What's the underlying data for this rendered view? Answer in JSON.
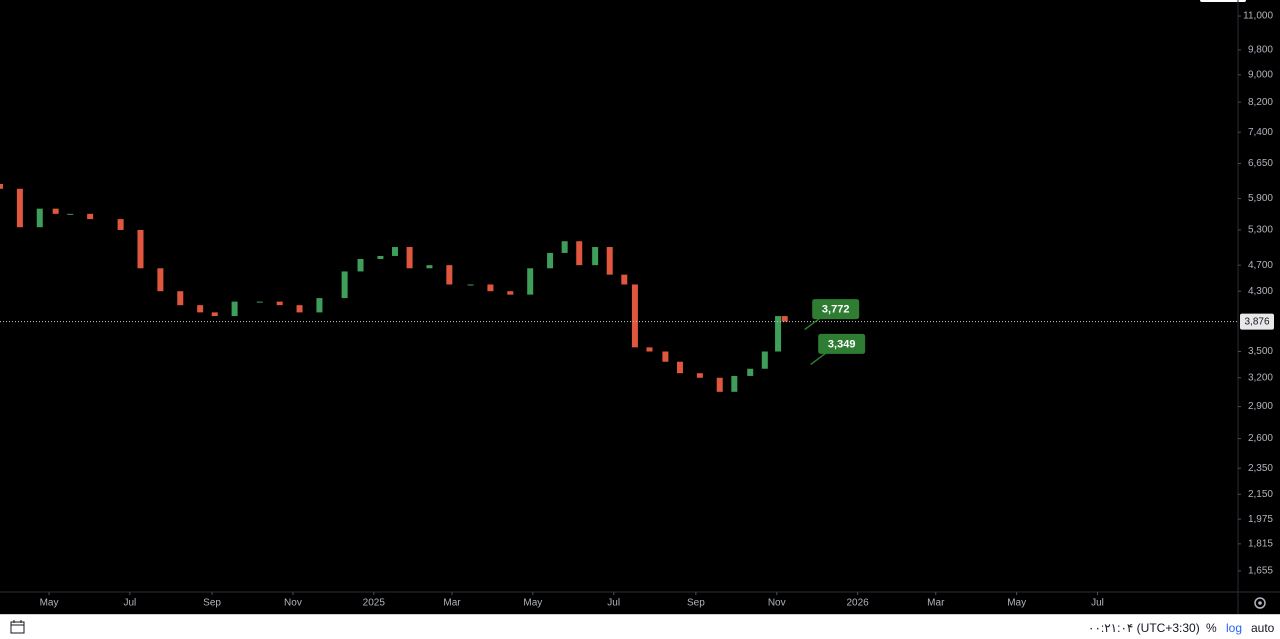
{
  "chart_data": {
    "type": "candlestick",
    "log_scale": true,
    "x": [
      -37,
      -22,
      -7,
      5,
      16,
      31,
      54,
      69,
      84,
      99,
      114,
      125,
      140,
      159,
      174,
      189,
      204,
      223,
      235,
      250,
      261,
      272,
      287,
      302,
      318,
      333,
      348,
      363,
      378,
      389,
      400,
      412,
      423,
      434,
      442,
      453,
      465,
      476,
      491,
      506,
      517,
      529,
      540,
      550,
      555
    ],
    "open": [
      6200,
      6100,
      5350,
      5700,
      5600,
      5600,
      5500,
      5300,
      4650,
      4300,
      4100,
      4000,
      3950,
      4150,
      4150,
      4100,
      4000,
      4200,
      4600,
      4800,
      4850,
      5000,
      4650,
      4700,
      4400,
      4400,
      4300,
      4250,
      4650,
      4900,
      5100,
      4700,
      5000,
      4550,
      4400,
      3550,
      3500,
      3380,
      3250,
      3200,
      3050,
      3220,
      3300,
      3500,
      3950
    ],
    "close": [
      6100,
      5350,
      5700,
      5600,
      5600,
      5500,
      5300,
      4650,
      4300,
      4100,
      4000,
      3950,
      4150,
      4150,
      4100,
      4000,
      4200,
      4600,
      4800,
      4850,
      5000,
      4650,
      4700,
      4400,
      4400,
      4300,
      4250,
      4650,
      4900,
      5100,
      4700,
      5000,
      4550,
      4400,
      3550,
      3500,
      3380,
      3250,
      3200,
      3050,
      3220,
      3300,
      3500,
      3950,
      3876
    ],
    "up_color": "#3f9e5a",
    "down_color": "#e0573f",
    "xlim": [
      -37,
      897
    ],
    "xticks": [
      {
        "value": 0,
        "label": "May"
      },
      {
        "value": 61,
        "label": "Jul"
      },
      {
        "value": 123,
        "label": "Sep"
      },
      {
        "value": 184,
        "label": "Nov"
      },
      {
        "value": 245,
        "label": "2025"
      },
      {
        "value": 304,
        "label": "Mar"
      },
      {
        "value": 365,
        "label": "May"
      },
      {
        "value": 426,
        "label": "Jul"
      },
      {
        "value": 488,
        "label": "Sep"
      },
      {
        "value": 549,
        "label": "Nov"
      },
      {
        "value": 610,
        "label": "2026"
      },
      {
        "value": 669,
        "label": "Mar"
      },
      {
        "value": 730,
        "label": "May"
      },
      {
        "value": 791,
        "label": "Jul"
      }
    ],
    "ylim": [
      1540,
      11620
    ],
    "yticks": [
      {
        "value": 11000,
        "label": "11,000"
      },
      {
        "value": 9800,
        "label": "9,800"
      },
      {
        "value": 9000,
        "label": "9,000"
      },
      {
        "value": 8200,
        "label": "8,200"
      },
      {
        "value": 7400,
        "label": "7,400"
      },
      {
        "value": 6650,
        "label": "6,650"
      },
      {
        "value": 5900,
        "label": "5,900"
      },
      {
        "value": 5300,
        "label": "5,300"
      },
      {
        "value": 4700,
        "label": "4,700"
      },
      {
        "value": 4300,
        "label": "4,300"
      },
      {
        "value": 3500,
        "label": "3,500"
      },
      {
        "value": 3200,
        "label": "3,200"
      },
      {
        "value": 2900,
        "label": "2,900"
      },
      {
        "value": 2600,
        "label": "2,600"
      },
      {
        "value": 2350,
        "label": "2,350"
      },
      {
        "value": 2150,
        "label": "2,150"
      },
      {
        "value": 1975,
        "label": "1,975"
      },
      {
        "value": 1815,
        "label": "1,815"
      },
      {
        "value": 1655,
        "label": "1,655"
      }
    ],
    "last_price": {
      "value": 3876,
      "label": "3,876"
    },
    "annotations": [
      {
        "value": 3772,
        "label": "3,772",
        "color": "#2e7d32"
      },
      {
        "value": 3349,
        "label": "3,349",
        "color": "#2e7d32"
      }
    ]
  },
  "toolbar": {
    "time": "۰۰:۲۱:۰۴ (UTC+3:30)",
    "percent": "%",
    "log": "log",
    "auto": "auto"
  }
}
